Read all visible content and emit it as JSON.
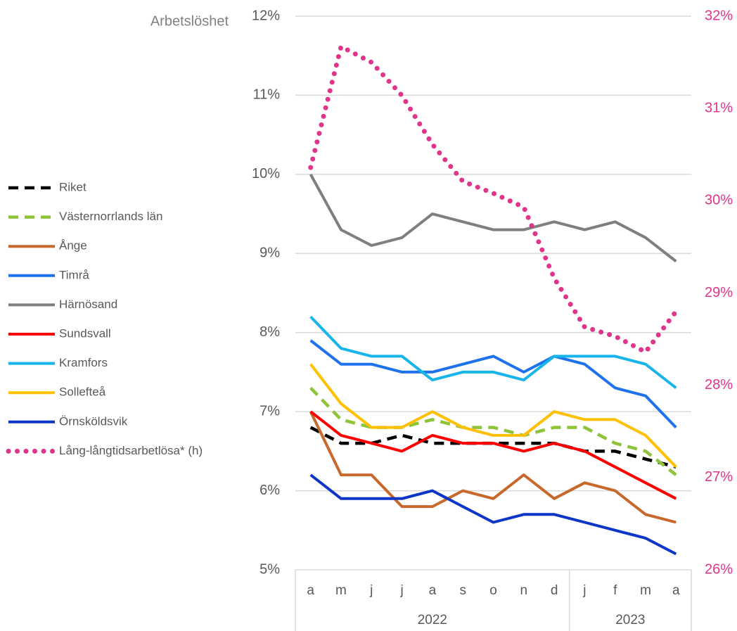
{
  "chart_data": {
    "type": "line",
    "title": "Arbetslöshet",
    "categories": [
      "a",
      "m",
      "j",
      "j",
      "a",
      "s",
      "o",
      "n",
      "d",
      "j",
      "f",
      "m",
      "a"
    ],
    "x_groups": [
      {
        "label": "2022",
        "count": 9
      },
      {
        "label": "2023",
        "count": 4
      }
    ],
    "ylim": [
      5,
      12
    ],
    "yticks": [
      {
        "value": 5,
        "label": "5%"
      },
      {
        "value": 6,
        "label": "6%"
      },
      {
        "value": 7,
        "label": "7%"
      },
      {
        "value": 8,
        "label": "8%"
      },
      {
        "value": 9,
        "label": "9%"
      },
      {
        "value": 10,
        "label": "10%"
      },
      {
        "value": 11,
        "label": "11%"
      },
      {
        "value": 12,
        "label": "12%"
      }
    ],
    "y2lim": [
      26,
      32
    ],
    "y2ticks": [
      {
        "value": 26,
        "label": "26%"
      },
      {
        "value": 27,
        "label": "27%"
      },
      {
        "value": 28,
        "label": "28%"
      },
      {
        "value": 29,
        "label": "29%"
      },
      {
        "value": 30,
        "label": "30%"
      },
      {
        "value": 31,
        "label": "31%"
      },
      {
        "value": 32,
        "label": "32%"
      }
    ],
    "y2_color": "#e0338a",
    "grid": true,
    "legend": "left",
    "series": [
      {
        "name": "Riket",
        "color": "#000000",
        "dash": "dashed",
        "values": [
          6.8,
          6.6,
          6.6,
          6.7,
          6.6,
          6.6,
          6.6,
          6.6,
          6.6,
          6.5,
          6.5,
          6.4,
          6.3
        ]
      },
      {
        "name": "Västernorrlands län",
        "color": "#8fc33a",
        "dash": "dashed",
        "values": [
          7.3,
          6.9,
          6.8,
          6.8,
          6.9,
          6.8,
          6.8,
          6.7,
          6.8,
          6.8,
          6.6,
          6.5,
          6.2
        ]
      },
      {
        "name": "Ånge",
        "color": "#c8692b",
        "dash": "solid",
        "values": [
          7.0,
          6.2,
          6.2,
          5.8,
          5.8,
          6.0,
          5.9,
          6.2,
          5.9,
          6.1,
          6.0,
          5.7,
          5.6
        ]
      },
      {
        "name": "Timrå",
        "color": "#1f72ee",
        "dash": "solid",
        "values": [
          7.9,
          7.6,
          7.6,
          7.5,
          7.5,
          7.6,
          7.7,
          7.5,
          7.7,
          7.6,
          7.3,
          7.2,
          6.8
        ]
      },
      {
        "name": "Härnösand",
        "color": "#7f7f7f",
        "dash": "solid",
        "values": [
          10.0,
          9.3,
          9.1,
          9.2,
          9.5,
          9.4,
          9.3,
          9.3,
          9.4,
          9.3,
          9.4,
          9.2,
          8.9
        ]
      },
      {
        "name": "Sundsvall",
        "color": "#ff0000",
        "dash": "solid",
        "values": [
          7.0,
          6.7,
          6.6,
          6.5,
          6.7,
          6.6,
          6.6,
          6.5,
          6.6,
          6.5,
          6.3,
          6.1,
          5.9
        ]
      },
      {
        "name": "Kramfors",
        "color": "#19b4ea",
        "dash": "solid",
        "values": [
          8.2,
          7.8,
          7.7,
          7.7,
          7.4,
          7.5,
          7.5,
          7.4,
          7.7,
          7.7,
          7.7,
          7.6,
          7.3
        ]
      },
      {
        "name": "Sollefteå",
        "color": "#ffc000",
        "dash": "solid",
        "values": [
          7.6,
          7.1,
          6.8,
          6.8,
          7.0,
          6.8,
          6.7,
          6.7,
          7.0,
          6.9,
          6.9,
          6.7,
          6.3
        ]
      },
      {
        "name": "Örnsköldsvik",
        "color": "#0c36c8",
        "dash": "solid",
        "values": [
          6.2,
          5.9,
          5.9,
          5.9,
          6.0,
          5.8,
          5.6,
          5.7,
          5.7,
          5.6,
          5.5,
          5.4,
          5.2
        ]
      },
      {
        "name": "Lång-långtidsarbetlösa* (h)",
        "color": "#e0338a",
        "dash": "dotted",
        "axis": "y2",
        "values": [
          30.36,
          31.67,
          31.5,
          31.14,
          30.61,
          30.21,
          30.08,
          29.93,
          29.16,
          28.63,
          28.53,
          28.36,
          28.8
        ]
      }
    ]
  }
}
